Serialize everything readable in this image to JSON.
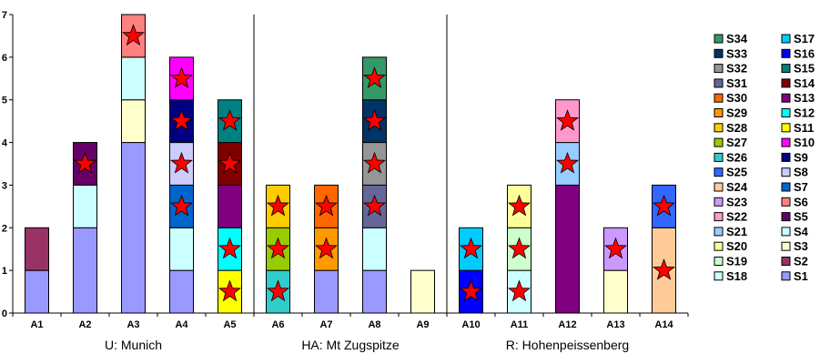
{
  "chart_data": {
    "type": "bar",
    "stacked": true,
    "title": "",
    "xlabel": "",
    "ylabel": "",
    "ylim": [
      0,
      7
    ],
    "yticks": [
      0,
      1,
      2,
      3,
      4,
      5,
      6,
      7
    ],
    "grid": false,
    "legend_position": "right",
    "categories": [
      "A1",
      "A2",
      "A3",
      "A4",
      "A5",
      "A6",
      "A7",
      "A8",
      "A9",
      "A10",
      "A11",
      "A12",
      "A13",
      "A14"
    ],
    "groups": [
      {
        "label": "U: Munich",
        "categories": [
          "A1",
          "A2",
          "A3",
          "A4",
          "A5"
        ]
      },
      {
        "label": "HA: Mt Zugspitze",
        "categories": [
          "A6",
          "A7",
          "A8",
          "A9"
        ]
      },
      {
        "label": "R: Hohenpeissenberg",
        "categories": [
          "A10",
          "A11",
          "A12",
          "A13",
          "A14"
        ]
      }
    ],
    "series_colors": {
      "S1": "#9999ff",
      "S2": "#993366",
      "S3": "#ffffcc",
      "S4": "#ccffff",
      "S5": "#660066",
      "S6": "#ff8080",
      "S7": "#0066cc",
      "S8": "#ccccff",
      "S9": "#000080",
      "S10": "#ff00ff",
      "S11": "#ffff00",
      "S12": "#00ffff",
      "S13": "#800080",
      "S14": "#800000",
      "S15": "#008080",
      "S16": "#0000ff",
      "S17": "#00ccff",
      "S18": "#ccffff",
      "S19": "#ccffcc",
      "S20": "#ffff99",
      "S21": "#99ccff",
      "S22": "#ff99cc",
      "S23": "#cc99ff",
      "S24": "#ffcc99",
      "S25": "#3366ff",
      "S26": "#33cccc",
      "S27": "#99cc00",
      "S28": "#ffcc00",
      "S29": "#ff9900",
      "S30": "#ff6600",
      "S31": "#666699",
      "S32": "#969696",
      "S33": "#003366",
      "S34": "#339966"
    },
    "legend": [
      [
        "S34",
        "S17"
      ],
      [
        "S33",
        "S16"
      ],
      [
        "S32",
        "S15"
      ],
      [
        "S31",
        "S14"
      ],
      [
        "S30",
        "S13"
      ],
      [
        "S29",
        "S12"
      ],
      [
        "S28",
        "S11"
      ],
      [
        "S27",
        "S10"
      ],
      [
        "S26",
        "S9"
      ],
      [
        "S25",
        "S8"
      ],
      [
        "S24",
        "S7"
      ],
      [
        "S23",
        "S6"
      ],
      [
        "S22",
        "S5"
      ],
      [
        "S21",
        "S4"
      ],
      [
        "S20",
        "S3"
      ],
      [
        "S19",
        "S2"
      ],
      [
        "S18",
        "S1"
      ]
    ],
    "stacks": {
      "A1": [
        {
          "s": "S1",
          "v": 1
        },
        {
          "s": "S2",
          "v": 1
        }
      ],
      "A2": [
        {
          "s": "S1",
          "v": 2
        },
        {
          "s": "S4",
          "v": 1
        },
        {
          "s": "S5",
          "v": 1,
          "star": true
        }
      ],
      "A3": [
        {
          "s": "S1",
          "v": 4
        },
        {
          "s": "S3",
          "v": 1
        },
        {
          "s": "S4",
          "v": 1
        },
        {
          "s": "S6",
          "v": 1,
          "star": true
        }
      ],
      "A4": [
        {
          "s": "S1",
          "v": 1
        },
        {
          "s": "S4",
          "v": 1
        },
        {
          "s": "S7",
          "v": 1,
          "star": true
        },
        {
          "s": "S8",
          "v": 1,
          "star": true
        },
        {
          "s": "S9",
          "v": 1,
          "star": true
        },
        {
          "s": "S10",
          "v": 1,
          "star": true
        }
      ],
      "A5": [
        {
          "s": "S11",
          "v": 1,
          "star": true
        },
        {
          "s": "S12",
          "v": 1,
          "star": true
        },
        {
          "s": "S13",
          "v": 1
        },
        {
          "s": "S14",
          "v": 1,
          "star": true
        },
        {
          "s": "S15",
          "v": 1,
          "star": true
        }
      ],
      "A6": [
        {
          "s": "S26",
          "v": 1,
          "star": true
        },
        {
          "s": "S27",
          "v": 1,
          "star": true
        },
        {
          "s": "S28",
          "v": 1,
          "star": true
        }
      ],
      "A7": [
        {
          "s": "S1",
          "v": 1
        },
        {
          "s": "S29",
          "v": 1,
          "star": true
        },
        {
          "s": "S30",
          "v": 1,
          "star": true
        }
      ],
      "A8": [
        {
          "s": "S1",
          "v": 1
        },
        {
          "s": "S4",
          "v": 1
        },
        {
          "s": "S31",
          "v": 1,
          "star": true
        },
        {
          "s": "S32",
          "v": 1,
          "star": true
        },
        {
          "s": "S33",
          "v": 1,
          "star": true
        },
        {
          "s": "S34",
          "v": 1,
          "star": true
        }
      ],
      "A9": [
        {
          "s": "S3",
          "v": 1
        }
      ],
      "A10": [
        {
          "s": "S16",
          "v": 1,
          "star": true
        },
        {
          "s": "S17",
          "v": 1,
          "star": true
        }
      ],
      "A11": [
        {
          "s": "S18",
          "v": 1,
          "star": true
        },
        {
          "s": "S19",
          "v": 1,
          "star": true
        },
        {
          "s": "S20",
          "v": 1,
          "star": true
        }
      ],
      "A12": [
        {
          "s": "S13",
          "v": 3
        },
        {
          "s": "S21",
          "v": 1,
          "star": true
        },
        {
          "s": "S22",
          "v": 1,
          "star": true
        }
      ],
      "A13": [
        {
          "s": "S3",
          "v": 1
        },
        {
          "s": "S23",
          "v": 1,
          "star": true
        }
      ],
      "A14": [
        {
          "s": "S24",
          "v": 2,
          "star": true
        },
        {
          "s": "S25",
          "v": 1,
          "star": true
        }
      ]
    },
    "star_color": "#ff0000"
  }
}
